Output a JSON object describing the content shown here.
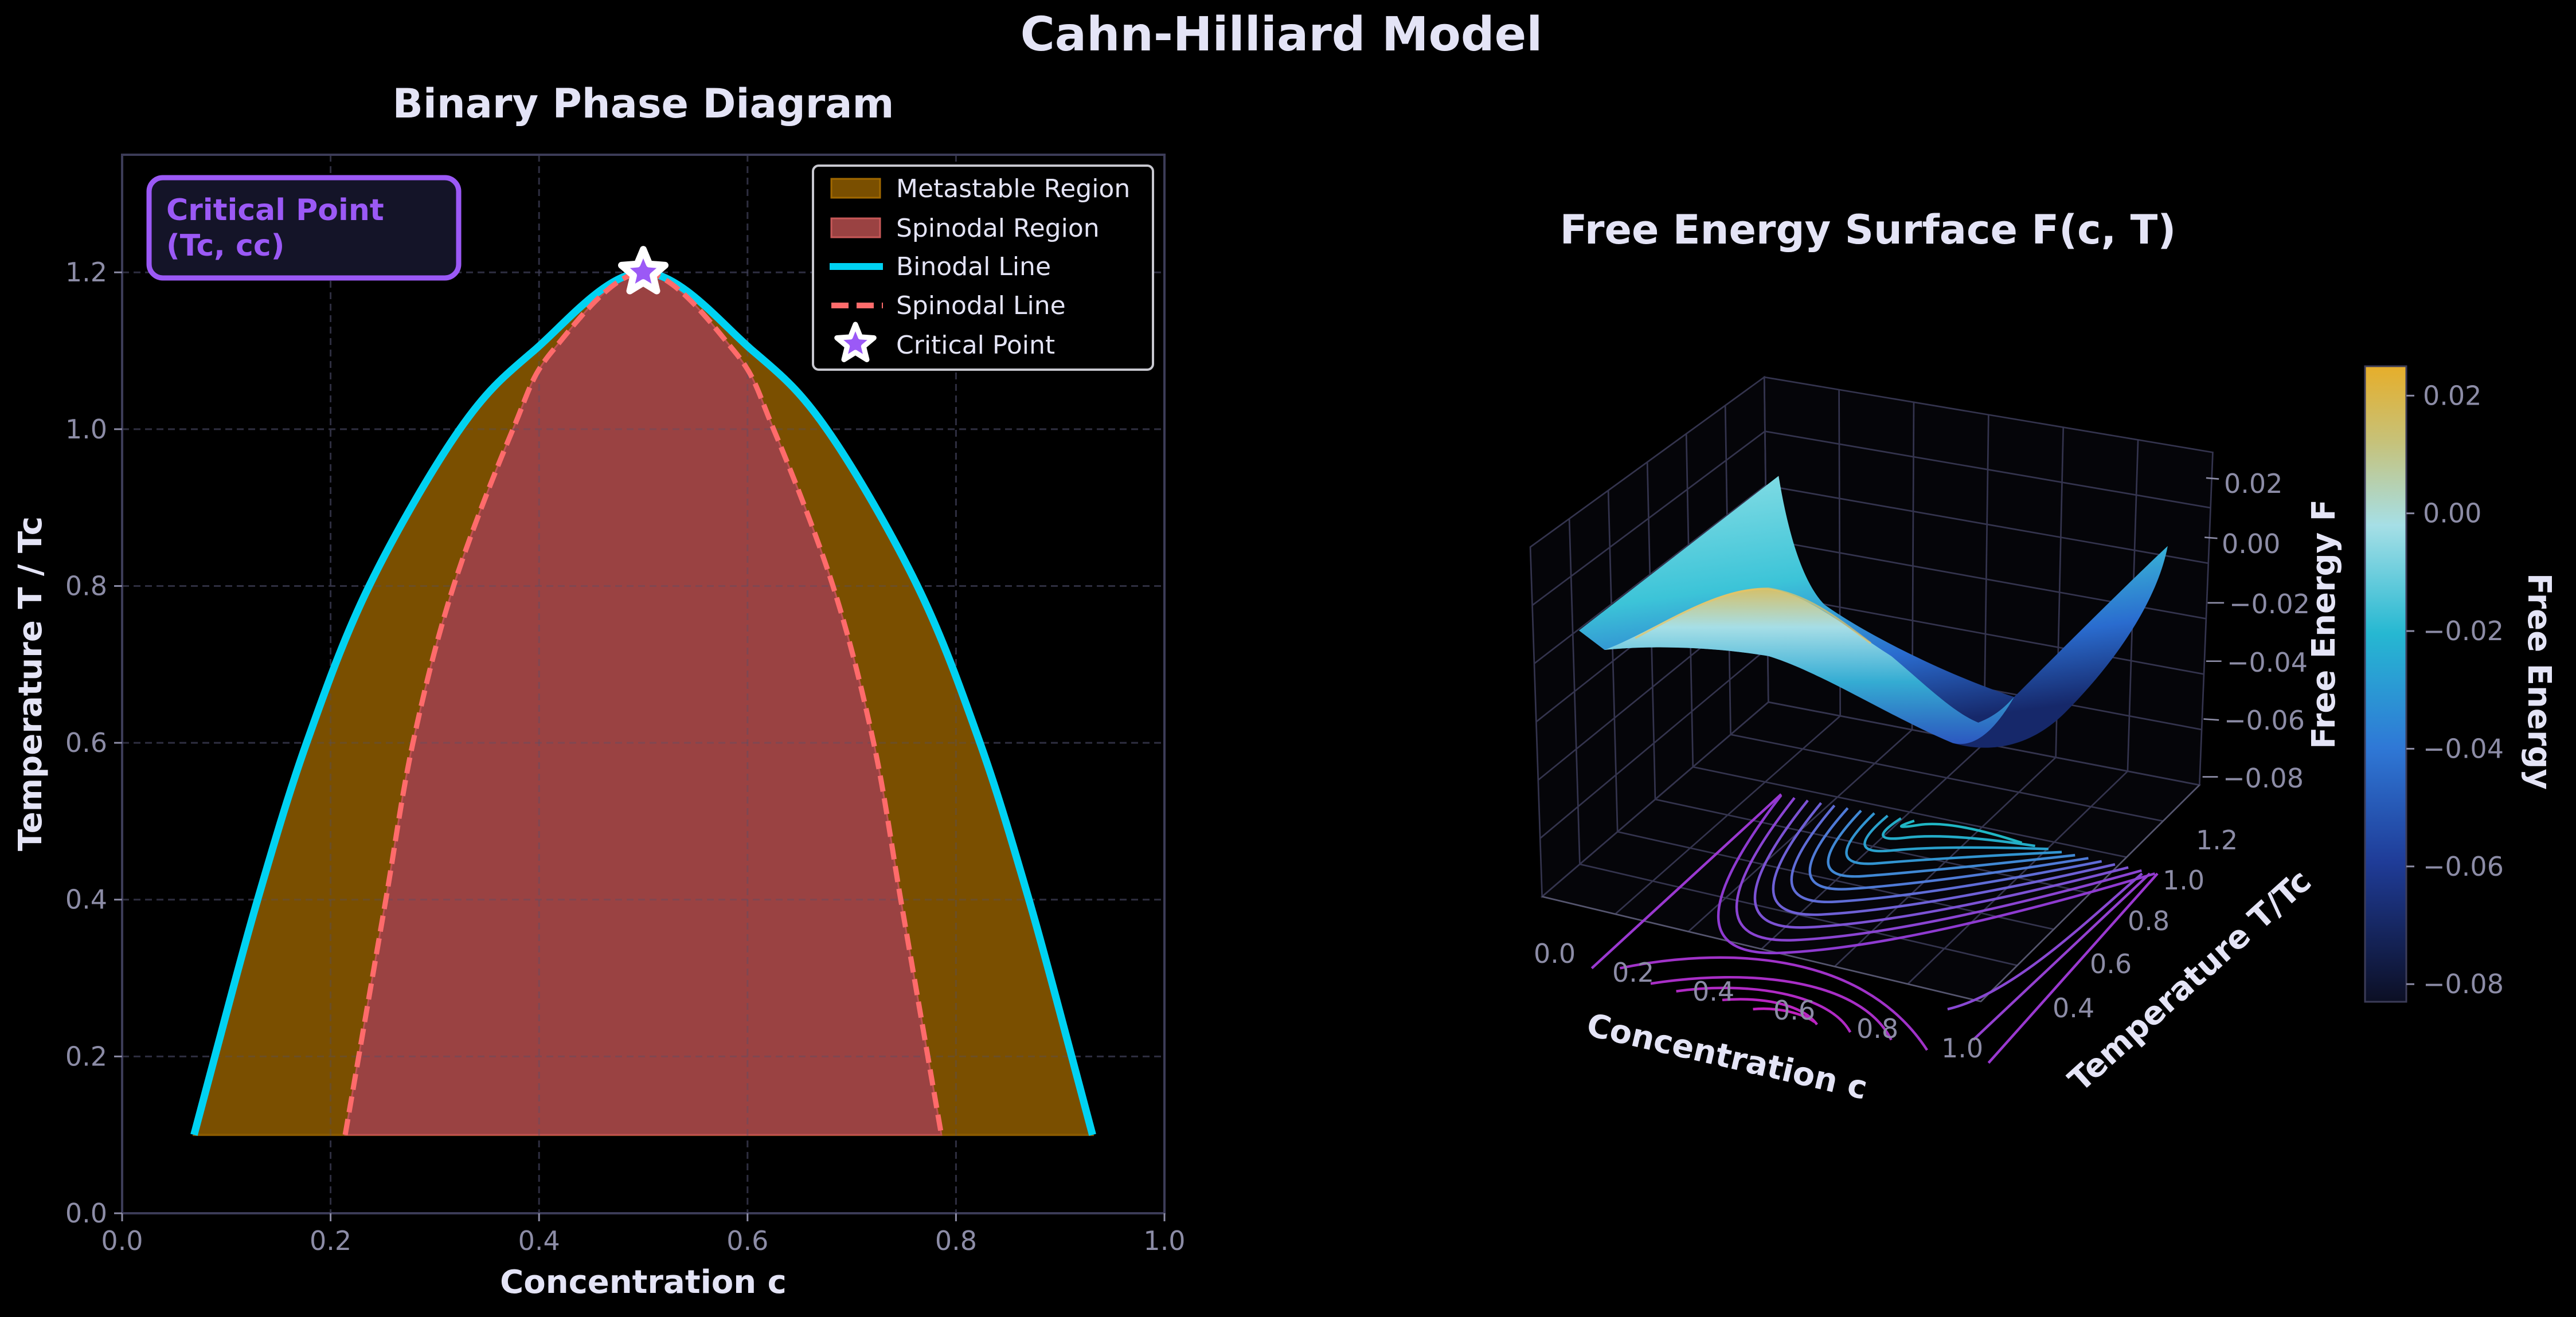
{
  "figure": {
    "title": "Cahn-Hilliard Model"
  },
  "colors": {
    "binodal": "#00d2f2",
    "spinodal": "#ff6b6b",
    "metastable_fill": "#7a4f00",
    "spinodal_fill": "#9a4242",
    "critical": "#9b59f6",
    "axis": "#3c3c58",
    "tick": "#8c8ca6"
  },
  "chart_data": [
    {
      "type": "area",
      "title": "Binary Phase Diagram",
      "xlabel": "Concentration c",
      "ylabel": "Temperature T / Tc",
      "xlim": [
        0,
        1
      ],
      "ylim": [
        0,
        1.35
      ],
      "xticks": [
        "0.0",
        "0.2",
        "0.4",
        "0.6",
        "0.8",
        "1.0"
      ],
      "yticks": [
        "0.0",
        "0.2",
        "0.4",
        "0.6",
        "0.8",
        "1.0",
        "1.2"
      ],
      "grid": true,
      "series": [
        {
          "name": "Binodal Line",
          "c": [
            0.069,
            0.089,
            0.13,
            0.177,
            0.237,
            0.324,
            0.395,
            0.5,
            0.605,
            0.676,
            0.763,
            0.823,
            0.87,
            0.911,
            0.931
          ],
          "T": [
            0.1,
            0.2,
            0.4,
            0.6,
            0.8,
            1.0,
            1.1,
            1.2,
            1.1,
            1.0,
            0.8,
            0.6,
            0.4,
            0.2,
            0.1
          ]
        },
        {
          "name": "Spinodal Line",
          "c": [
            0.214,
            0.227,
            0.253,
            0.279,
            0.318,
            0.375,
            0.413,
            0.5,
            0.587,
            0.625,
            0.682,
            0.721,
            0.747,
            0.773,
            0.786
          ],
          "T": [
            0.1,
            0.2,
            0.4,
            0.6,
            0.8,
            1.0,
            1.1,
            1.2,
            1.1,
            1.0,
            0.8,
            0.6,
            0.4,
            0.2,
            0.1
          ]
        }
      ],
      "critical_point": {
        "c": 0.5,
        "T": 1.2
      },
      "annotation": [
        "Critical Point",
        "(Tc, cc)"
      ],
      "legend": {
        "placement": "top-right",
        "entries": [
          "Metastable Region",
          "Spinodal Region",
          "Binodal Line",
          "Spinodal Line",
          "Critical Point"
        ]
      }
    },
    {
      "type": "surface3d",
      "title": "Free Energy Surface F(c, T)",
      "xlabel": "Concentration c",
      "ylabel": "Temperature T/Tc",
      "zlabel": "Free Energy F",
      "xticks": [
        "0.0",
        "0.2",
        "0.4",
        "0.6",
        "0.8",
        "1.0"
      ],
      "yticks": [
        "0.4",
        "0.6",
        "0.8",
        "1.0",
        "1.2"
      ],
      "zticks": [
        "0.02",
        "0.00",
        "−0.02",
        "−0.04",
        "−0.06",
        "−0.08"
      ],
      "zlim": [
        -0.083,
        0.025
      ],
      "colorbar": {
        "label": "Free Energy",
        "ticks": [
          "0.02",
          "0.00",
          "−0.02",
          "−0.04",
          "−0.06",
          "−0.08"
        ],
        "range": [
          -0.083,
          0.025
        ]
      }
    }
  ]
}
